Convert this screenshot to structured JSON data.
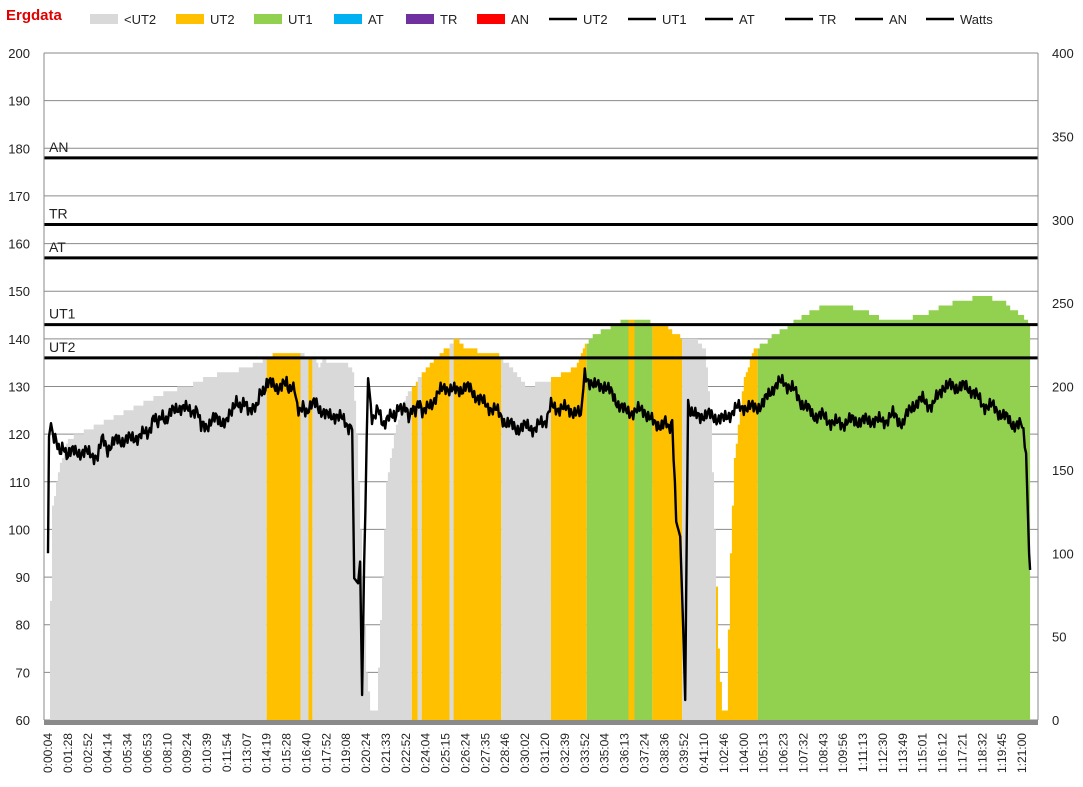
{
  "app": {
    "title": "Ergdata"
  },
  "chart_data": {
    "type": "bar",
    "title": "Ergdata",
    "y_left": {
      "min": 60,
      "max": 200,
      "ticks": [
        60,
        70,
        80,
        90,
        100,
        110,
        120,
        130,
        140,
        150,
        160,
        170,
        180,
        190,
        200
      ]
    },
    "y_right": {
      "min": 0,
      "max": 400,
      "ticks": [
        0,
        50,
        100,
        150,
        200,
        250,
        300,
        350,
        400
      ]
    },
    "x_ticks": [
      "0:00:04",
      "0:01:28",
      "0:02:52",
      "0:04:14",
      "0:05:34",
      "0:06:53",
      "0:08:10",
      "0:09:24",
      "0:10:39",
      "0:11:54",
      "0:13:07",
      "0:14:19",
      "0:15:28",
      "0:16:40",
      "0:17:52",
      "0:19:08",
      "0:20:24",
      "0:21:33",
      "0:22:52",
      "0:24:04",
      "0:25:15",
      "0:26:24",
      "0:27:35",
      "0:28:46",
      "0:30:02",
      "0:31:20",
      "0:32:39",
      "0:33:52",
      "0:35:04",
      "0:36:13",
      "0:37:24",
      "0:38:36",
      "0:39:52",
      "0:41:10",
      "1:02:46",
      "1:04:00",
      "1:05:13",
      "1:06:23",
      "1:07:32",
      "1:08:43",
      "1:09:56",
      "1:11:13",
      "1:12:30",
      "1:13:49",
      "1:15:01",
      "1:16:12",
      "1:17:21",
      "1:18:32",
      "1:19:45",
      "1:21:00"
    ],
    "legend": [
      {
        "name": "<UT2",
        "kind": "area",
        "color": "#d9d9d9"
      },
      {
        "name": "UT2",
        "kind": "area",
        "color": "#ffc000"
      },
      {
        "name": "UT1",
        "kind": "area",
        "color": "#92d050"
      },
      {
        "name": "AT",
        "kind": "area",
        "color": "#00b0f0"
      },
      {
        "name": "TR",
        "kind": "area",
        "color": "#7030a0"
      },
      {
        "name": "AN",
        "kind": "area",
        "color": "#ff0000"
      },
      {
        "name": "UT2",
        "kind": "line",
        "color": "#000000"
      },
      {
        "name": "UT1",
        "kind": "line",
        "color": "#000000"
      },
      {
        "name": "AT",
        "kind": "line",
        "color": "#000000"
      },
      {
        "name": "TR",
        "kind": "line",
        "color": "#000000"
      },
      {
        "name": "AN",
        "kind": "line",
        "color": "#000000"
      },
      {
        "name": "Watts",
        "kind": "line",
        "color": "#000000"
      }
    ],
    "threshold_lines": [
      {
        "name": "UT2",
        "value": 136
      },
      {
        "name": "UT1",
        "value": 143
      },
      {
        "name": "AT",
        "value": 157
      },
      {
        "name": "TR",
        "value": 164
      },
      {
        "name": "AN",
        "value": 178
      }
    ],
    "heart_rate_bpm": [
      {
        "x_index": 0.0,
        "hr": 60
      },
      {
        "x_index": 0.1,
        "hr": 85
      },
      {
        "x_index": 0.2,
        "hr": 105
      },
      {
        "x_index": 0.5,
        "hr": 112
      },
      {
        "x_index": 0.8,
        "hr": 117
      },
      {
        "x_index": 1.0,
        "hr": 119
      },
      {
        "x_index": 2.0,
        "hr": 121
      },
      {
        "x_index": 3.0,
        "hr": 123
      },
      {
        "x_index": 4.0,
        "hr": 125
      },
      {
        "x_index": 5.0,
        "hr": 127
      },
      {
        "x_index": 6.0,
        "hr": 129
      },
      {
        "x_index": 7.0,
        "hr": 130
      },
      {
        "x_index": 8.0,
        "hr": 132
      },
      {
        "x_index": 9.0,
        "hr": 133
      },
      {
        "x_index": 10.0,
        "hr": 134
      },
      {
        "x_index": 10.5,
        "hr": 135
      },
      {
        "x_index": 11.0,
        "hr": 136
      },
      {
        "x_index": 11.3,
        "hr": 136.5
      },
      {
        "x_index": 12.0,
        "hr": 137
      },
      {
        "x_index": 12.7,
        "hr": 137
      },
      {
        "x_index": 13.0,
        "hr": 136
      },
      {
        "x_index": 13.4,
        "hr": 136
      },
      {
        "x_index": 13.6,
        "hr": 134
      },
      {
        "x_index": 13.8,
        "hr": 136.5
      },
      {
        "x_index": 14.0,
        "hr": 135
      },
      {
        "x_index": 15.0,
        "hr": 135
      },
      {
        "x_index": 15.3,
        "hr": 133
      },
      {
        "x_index": 15.5,
        "hr": 120
      },
      {
        "x_index": 15.7,
        "hr": 100
      },
      {
        "x_index": 16.0,
        "hr": 70
      },
      {
        "x_index": 16.2,
        "hr": 62
      },
      {
        "x_index": 16.5,
        "hr": 62
      },
      {
        "x_index": 16.8,
        "hr": 90
      },
      {
        "x_index": 17.0,
        "hr": 110
      },
      {
        "x_index": 17.5,
        "hr": 122
      },
      {
        "x_index": 18.0,
        "hr": 128
      },
      {
        "x_index": 18.5,
        "hr": 131
      },
      {
        "x_index": 19.0,
        "hr": 134
      },
      {
        "x_index": 19.5,
        "hr": 136
      },
      {
        "x_index": 20.0,
        "hr": 138
      },
      {
        "x_index": 20.5,
        "hr": 140
      },
      {
        "x_index": 21.0,
        "hr": 138
      },
      {
        "x_index": 22.0,
        "hr": 137
      },
      {
        "x_index": 22.5,
        "hr": 137
      },
      {
        "x_index": 23.0,
        "hr": 135
      },
      {
        "x_index": 23.5,
        "hr": 133
      },
      {
        "x_index": 24.0,
        "hr": 130
      },
      {
        "x_index": 25.0,
        "hr": 131
      },
      {
        "x_index": 26.0,
        "hr": 133
      },
      {
        "x_index": 26.5,
        "hr": 134
      },
      {
        "x_index": 27.0,
        "hr": 139
      },
      {
        "x_index": 27.5,
        "hr": 141
      },
      {
        "x_index": 28.0,
        "hr": 142
      },
      {
        "x_index": 28.5,
        "hr": 143
      },
      {
        "x_index": 29.0,
        "hr": 144
      },
      {
        "x_index": 30.0,
        "hr": 144
      },
      {
        "x_index": 30.5,
        "hr": 143
      },
      {
        "x_index": 31.0,
        "hr": 143
      },
      {
        "x_index": 31.5,
        "hr": 141
      },
      {
        "x_index": 32.0,
        "hr": 140
      },
      {
        "x_index": 32.5,
        "hr": 140
      },
      {
        "x_index": 33.0,
        "hr": 138
      },
      {
        "x_index": 33.3,
        "hr": 125
      },
      {
        "x_index": 33.5,
        "hr": 100
      },
      {
        "x_index": 33.7,
        "hr": 75
      },
      {
        "x_index": 33.9,
        "hr": 62
      },
      {
        "x_index": 34.1,
        "hr": 62
      },
      {
        "x_index": 34.3,
        "hr": 95
      },
      {
        "x_index": 34.5,
        "hr": 115
      },
      {
        "x_index": 34.8,
        "hr": 125
      },
      {
        "x_index": 35.0,
        "hr": 132
      },
      {
        "x_index": 35.5,
        "hr": 138
      },
      {
        "x_index": 36.0,
        "hr": 139
      },
      {
        "x_index": 36.5,
        "hr": 141
      },
      {
        "x_index": 37.0,
        "hr": 142
      },
      {
        "x_index": 38.0,
        "hr": 145
      },
      {
        "x_index": 39.0,
        "hr": 147
      },
      {
        "x_index": 40.0,
        "hr": 147
      },
      {
        "x_index": 41.0,
        "hr": 146
      },
      {
        "x_index": 42.0,
        "hr": 144
      },
      {
        "x_index": 43.0,
        "hr": 144
      },
      {
        "x_index": 44.0,
        "hr": 145
      },
      {
        "x_index": 45.0,
        "hr": 147
      },
      {
        "x_index": 46.0,
        "hr": 148
      },
      {
        "x_index": 47.0,
        "hr": 149
      },
      {
        "x_index": 48.0,
        "hr": 148
      },
      {
        "x_index": 48.5,
        "hr": 146
      },
      {
        "x_index": 49.0,
        "hr": 145
      },
      {
        "x_index": 49.4,
        "hr": 143
      }
    ],
    "zones_by_x_index": [
      {
        "zone": "<UT2",
        "from": 0,
        "to": 11.0
      },
      {
        "zone": "UT2",
        "from": 11.0,
        "to": 12.7
      },
      {
        "zone": "<UT2",
        "from": 12.7,
        "to": 13.1
      },
      {
        "zone": "UT2",
        "from": 13.1,
        "to": 13.3
      },
      {
        "zone": "<UT2",
        "from": 13.3,
        "to": 18.3
      },
      {
        "zone": "UT2",
        "from": 18.3,
        "to": 18.6
      },
      {
        "zone": "<UT2",
        "from": 18.6,
        "to": 18.8
      },
      {
        "zone": "UT2",
        "from": 18.8,
        "to": 20.2
      },
      {
        "zone": "<UT2",
        "from": 20.2,
        "to": 20.4
      },
      {
        "zone": "UT2",
        "from": 20.4,
        "to": 22.8
      },
      {
        "zone": "<UT2",
        "from": 22.8,
        "to": 25.3
      },
      {
        "zone": "UT2",
        "from": 25.3,
        "to": 27.1
      },
      {
        "zone": "UT1",
        "from": 27.1,
        "to": 29.2
      },
      {
        "zone": "UT2",
        "from": 29.2,
        "to": 29.5
      },
      {
        "zone": "UT1",
        "from": 29.5,
        "to": 30.4
      },
      {
        "zone": "UT2",
        "from": 30.4,
        "to": 31.9
      },
      {
        "zone": "<UT2",
        "from": 31.9,
        "to": 33.6
      },
      {
        "zone": "UT2",
        "from": 33.6,
        "to": 35.7
      },
      {
        "zone": "UT1",
        "from": 35.7,
        "to": 49.4
      }
    ],
    "watts_right_axis": [
      {
        "x_index": 0.0,
        "w": 100
      },
      {
        "x_index": 0.05,
        "w": 170
      },
      {
        "x_index": 0.15,
        "w": 178
      },
      {
        "x_index": 0.3,
        "w": 168
      },
      {
        "x_index": 0.6,
        "w": 163
      },
      {
        "x_index": 1.0,
        "w": 160
      },
      {
        "x_index": 1.5,
        "w": 161
      },
      {
        "x_index": 2.0,
        "w": 160
      },
      {
        "x_index": 2.5,
        "w": 158
      },
      {
        "x_index": 2.7,
        "w": 168
      },
      {
        "x_index": 3.0,
        "w": 163
      },
      {
        "x_index": 3.5,
        "w": 168
      },
      {
        "x_index": 4.0,
        "w": 168
      },
      {
        "x_index": 4.5,
        "w": 170
      },
      {
        "x_index": 5.0,
        "w": 172
      },
      {
        "x_index": 5.3,
        "w": 180
      },
      {
        "x_index": 6.0,
        "w": 181
      },
      {
        "x_index": 6.5,
        "w": 188
      },
      {
        "x_index": 7.0,
        "w": 186
      },
      {
        "x_index": 7.5,
        "w": 186
      },
      {
        "x_index": 7.7,
        "w": 175
      },
      {
        "x_index": 8.0,
        "w": 177
      },
      {
        "x_index": 8.5,
        "w": 181
      },
      {
        "x_index": 9.0,
        "w": 178
      },
      {
        "x_index": 9.3,
        "w": 189
      },
      {
        "x_index": 10.0,
        "w": 189
      },
      {
        "x_index": 10.3,
        "w": 185
      },
      {
        "x_index": 10.7,
        "w": 195
      },
      {
        "x_index": 11.0,
        "w": 202
      },
      {
        "x_index": 11.5,
        "w": 200
      },
      {
        "x_index": 12.0,
        "w": 201
      },
      {
        "x_index": 12.4,
        "w": 197
      },
      {
        "x_index": 12.6,
        "w": 187
      },
      {
        "x_index": 13.0,
        "w": 186
      },
      {
        "x_index": 13.5,
        "w": 190
      },
      {
        "x_index": 14.0,
        "w": 182
      },
      {
        "x_index": 14.5,
        "w": 183
      },
      {
        "x_index": 15.0,
        "w": 178
      },
      {
        "x_index": 15.3,
        "w": 174
      },
      {
        "x_index": 15.4,
        "w": 85
      },
      {
        "x_index": 15.6,
        "w": 82
      },
      {
        "x_index": 15.7,
        "w": 95
      },
      {
        "x_index": 15.8,
        "w": 15
      },
      {
        "x_index": 15.9,
        "w": 90
      },
      {
        "x_index": 16.1,
        "w": 205
      },
      {
        "x_index": 16.3,
        "w": 182
      },
      {
        "x_index": 16.6,
        "w": 185
      },
      {
        "x_index": 16.9,
        "w": 178
      },
      {
        "x_index": 17.4,
        "w": 183
      },
      {
        "x_index": 17.8,
        "w": 188
      },
      {
        "x_index": 18.2,
        "w": 183
      },
      {
        "x_index": 18.6,
        "w": 189
      },
      {
        "x_index": 19.0,
        "w": 185
      },
      {
        "x_index": 19.5,
        "w": 194
      },
      {
        "x_index": 20.0,
        "w": 200
      },
      {
        "x_index": 20.5,
        "w": 197
      },
      {
        "x_index": 21.0,
        "w": 200
      },
      {
        "x_index": 21.5,
        "w": 195
      },
      {
        "x_index": 22.0,
        "w": 189
      },
      {
        "x_index": 22.5,
        "w": 186
      },
      {
        "x_index": 23.0,
        "w": 179
      },
      {
        "x_index": 23.5,
        "w": 175
      },
      {
        "x_index": 24.0,
        "w": 176
      },
      {
        "x_index": 24.5,
        "w": 175
      },
      {
        "x_index": 25.0,
        "w": 179
      },
      {
        "x_index": 25.3,
        "w": 188
      },
      {
        "x_index": 25.8,
        "w": 187
      },
      {
        "x_index": 26.3,
        "w": 186
      },
      {
        "x_index": 26.8,
        "w": 183
      },
      {
        "x_index": 27.0,
        "w": 207
      },
      {
        "x_index": 27.5,
        "w": 200
      },
      {
        "x_index": 28.0,
        "w": 201
      },
      {
        "x_index": 28.5,
        "w": 193
      },
      {
        "x_index": 29.0,
        "w": 185
      },
      {
        "x_index": 29.5,
        "w": 185
      },
      {
        "x_index": 30.0,
        "w": 186
      },
      {
        "x_index": 30.5,
        "w": 177
      },
      {
        "x_index": 31.0,
        "w": 178
      },
      {
        "x_index": 31.4,
        "w": 176
      },
      {
        "x_index": 31.6,
        "w": 119
      },
      {
        "x_index": 31.8,
        "w": 110
      },
      {
        "x_index": 31.95,
        "w": 55
      },
      {
        "x_index": 32.05,
        "w": 12
      },
      {
        "x_index": 32.2,
        "w": 190
      },
      {
        "x_index": 32.5,
        "w": 182
      },
      {
        "x_index": 33.0,
        "w": 183
      },
      {
        "x_index": 33.5,
        "w": 182
      },
      {
        "x_index": 34.0,
        "w": 180
      },
      {
        "x_index": 34.5,
        "w": 186
      },
      {
        "x_index": 35.0,
        "w": 188
      },
      {
        "x_index": 35.5,
        "w": 187
      },
      {
        "x_index": 36.0,
        "w": 190
      },
      {
        "x_index": 36.5,
        "w": 200
      },
      {
        "x_index": 37.0,
        "w": 203
      },
      {
        "x_index": 37.5,
        "w": 198
      },
      {
        "x_index": 38.0,
        "w": 189
      },
      {
        "x_index": 38.5,
        "w": 183
      },
      {
        "x_index": 39.0,
        "w": 182
      },
      {
        "x_index": 39.5,
        "w": 178
      },
      {
        "x_index": 40.0,
        "w": 178
      },
      {
        "x_index": 40.5,
        "w": 180
      },
      {
        "x_index": 41.0,
        "w": 179
      },
      {
        "x_index": 41.5,
        "w": 180
      },
      {
        "x_index": 42.0,
        "w": 179
      },
      {
        "x_index": 42.5,
        "w": 183
      },
      {
        "x_index": 43.0,
        "w": 178
      },
      {
        "x_index": 43.5,
        "w": 189
      },
      {
        "x_index": 44.0,
        "w": 192
      },
      {
        "x_index": 44.5,
        "w": 188
      },
      {
        "x_index": 45.0,
        "w": 200
      },
      {
        "x_index": 45.5,
        "w": 200
      },
      {
        "x_index": 46.0,
        "w": 200
      },
      {
        "x_index": 46.5,
        "w": 198
      },
      {
        "x_index": 47.0,
        "w": 189
      },
      {
        "x_index": 47.5,
        "w": 188
      },
      {
        "x_index": 48.0,
        "w": 183
      },
      {
        "x_index": 48.5,
        "w": 178
      },
      {
        "x_index": 49.0,
        "w": 176
      },
      {
        "x_index": 49.2,
        "w": 160
      },
      {
        "x_index": 49.35,
        "w": 100
      },
      {
        "x_index": 49.4,
        "w": 90
      }
    ]
  }
}
